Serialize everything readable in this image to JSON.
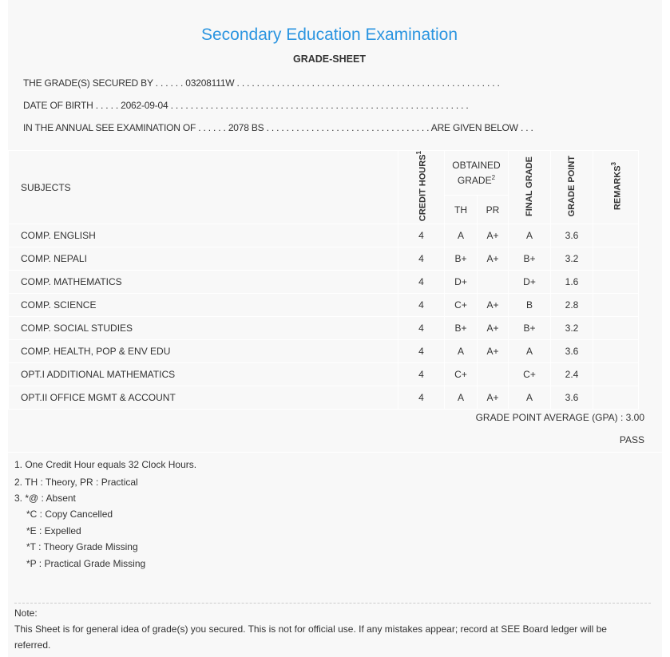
{
  "header": {
    "title": "Secondary Education Examination",
    "subtitle": "GRADE-SHEET",
    "secured_by_line": "THE GRADE(S) SECURED BY . . . . . . 03208111W . . . . . . . . . . . . . . . . . . . . . . . . . . . . . . . . . . . . . . . . . . . . . . . . . . . . .",
    "dob_line": "DATE OF BIRTH . . . . . 2062-09-04 . . . . . . . . . . . . . . . . . . . . . . . . . . . . . . . . . . . . . . . . . . . . . . . . . . . . . . . . . . . .",
    "exam_line": "IN THE ANNUAL SEE EXAMINATION OF . . . . . . 2078 BS . . . . . . . . . . . . . . . . . . . . . . . . . . . . . . . . . ARE GIVEN BELOW . . ."
  },
  "table": {
    "headers": {
      "subjects": "SUBJECTS",
      "credit_hours": "CREDIT HOURS",
      "credit_sup": "1",
      "obtained_grade": "OBTAINED GRADE",
      "obtained_sup": "2",
      "th": "TH",
      "pr": "PR",
      "final_grade": "FINAL GRADE",
      "grade_point": "GRADE POINT",
      "remarks": "REMARKS",
      "remarks_sup": "3"
    },
    "rows": [
      {
        "subject": "COMP. ENGLISH",
        "credit": "4",
        "th": "A",
        "pr": "A+",
        "final": "A",
        "gp": "3.6",
        "remarks": ""
      },
      {
        "subject": "COMP. NEPALI",
        "credit": "4",
        "th": "B+",
        "pr": "A+",
        "final": "B+",
        "gp": "3.2",
        "remarks": ""
      },
      {
        "subject": "COMP. MATHEMATICS",
        "credit": "4",
        "th": "D+",
        "pr": "",
        "final": "D+",
        "gp": "1.6",
        "remarks": ""
      },
      {
        "subject": "COMP. SCIENCE",
        "credit": "4",
        "th": "C+",
        "pr": "A+",
        "final": "B",
        "gp": "2.8",
        "remarks": ""
      },
      {
        "subject": "COMP. SOCIAL STUDIES",
        "credit": "4",
        "th": "B+",
        "pr": "A+",
        "final": "B+",
        "gp": "3.2",
        "remarks": ""
      },
      {
        "subject": "COMP. HEALTH, POP & ENV EDU",
        "credit": "4",
        "th": "A",
        "pr": "A+",
        "final": "A",
        "gp": "3.6",
        "remarks": ""
      },
      {
        "subject": "OPT.I ADDITIONAL MATHEMATICS",
        "credit": "4",
        "th": "C+",
        "pr": "",
        "final": "C+",
        "gp": "2.4",
        "remarks": ""
      },
      {
        "subject": "OPT.II OFFICE MGMT & ACCOUNT",
        "credit": "4",
        "th": "A",
        "pr": "A+",
        "final": "A",
        "gp": "3.6",
        "remarks": ""
      }
    ]
  },
  "summary": {
    "gpa": "GRADE POINT AVERAGE (GPA) : 3.00",
    "result": "PASS"
  },
  "footnotes": [
    "1. One Credit Hour equals 32 Clock Hours.",
    "2. TH : Theory, PR : Practical",
    "3. *@ : Absent",
    "*C : Copy Cancelled",
    "*E : Expelled",
    "*T : Theory Grade Missing",
    "*P : Practical Grade Missing"
  ],
  "note": {
    "label": "Note:",
    "text": "This Sheet is for general idea of grade(s) you secured. This is not for official use. If any mistakes appear; record at SEE Board ledger will be referred."
  },
  "colors": {
    "title": "#2b95e0",
    "background": "#f8f8f8"
  }
}
